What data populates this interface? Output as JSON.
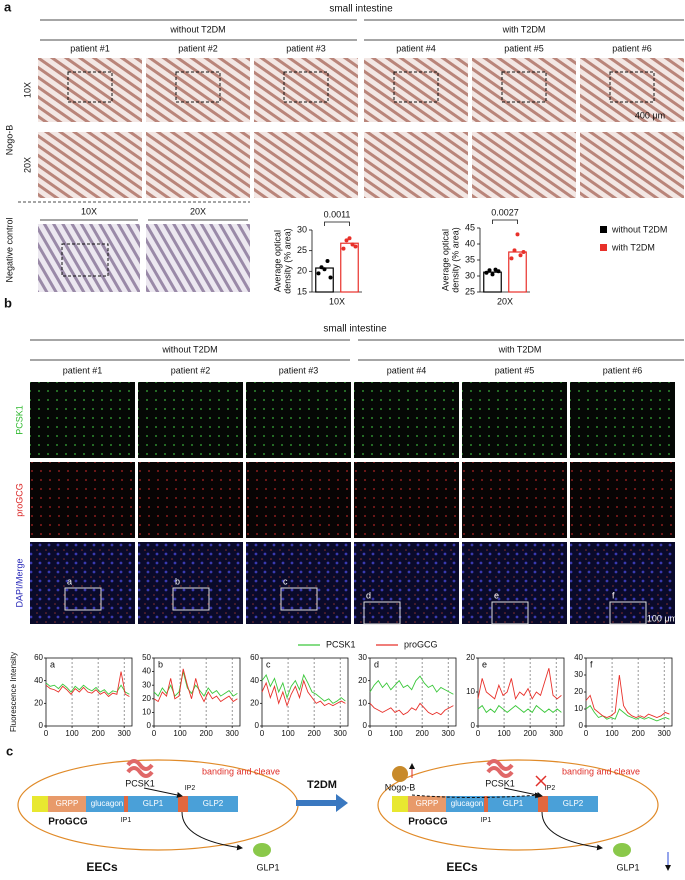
{
  "panel_a": {
    "label": "a",
    "title": "small intestine",
    "groups": [
      "without T2DM",
      "with T2DM"
    ],
    "patients": [
      "patient #1",
      "patient #2",
      "patient #3",
      "patient #4",
      "patient #5",
      "patient #6"
    ],
    "row_labels": [
      "10X",
      "20X"
    ],
    "stain_label": "Nogo-B",
    "negative_control": {
      "label": "Negative control",
      "columns": [
        "10X",
        "20X"
      ]
    },
    "scale_bar": "400 μm"
  },
  "panel_b": {
    "label": "b",
    "title": "small intestine",
    "groups": [
      "without T2DM",
      "with T2DM"
    ],
    "patients": [
      "patient #1",
      "patient #2",
      "patient #3",
      "patient #4",
      "patient #5",
      "patient #6"
    ],
    "rows": [
      "PCSK1",
      "proGCG",
      "DAPI/Merge"
    ],
    "roi_labels": [
      "a",
      "b",
      "c",
      "d",
      "e",
      "f"
    ],
    "scale_bar": "100 μm"
  },
  "chart_data": [
    {
      "type": "bar",
      "ylabel_lines": [
        "Average optical",
        "density (% area)"
      ],
      "xlabel": "10X",
      "ylim": [
        15,
        30
      ],
      "yticks": [
        15,
        20,
        25,
        30
      ],
      "annotation": "0.0011",
      "legend": "right",
      "series": [
        {
          "name": "without T2DM",
          "color": "#000000",
          "values": [
            20.8
          ],
          "points": [
            19.5,
            21,
            20.5,
            22.5,
            18.5
          ]
        },
        {
          "name": "with T2DM",
          "color": "#e8302a",
          "values": [
            26.8
          ],
          "points": [
            25.5,
            27.5,
            28,
            26.5,
            26
          ]
        }
      ]
    },
    {
      "type": "bar",
      "ylabel_lines": [
        "Average optical",
        "density (% area)"
      ],
      "xlabel": "20X",
      "ylim": [
        25,
        45
      ],
      "yticks": [
        25,
        30,
        35,
        40,
        45
      ],
      "annotation": "0.0027",
      "series": [
        {
          "name": "without T2DM",
          "color": "#000000",
          "values": [
            31.2
          ],
          "points": [
            31,
            31.8,
            30.5,
            32,
            31.5
          ]
        },
        {
          "name": "with T2DM",
          "color": "#e8302a",
          "values": [
            37.5
          ],
          "points": [
            35.5,
            38,
            43,
            36.5,
            37.5
          ]
        }
      ]
    },
    {
      "type": "line",
      "label": "a",
      "ylabel": "Fluorescence Intensity",
      "xlim": [
        0,
        330
      ],
      "xticks": [
        0,
        100,
        200,
        300
      ],
      "ylim": [
        0,
        60
      ],
      "yticks": [
        0,
        20,
        40,
        60
      ],
      "grid": "dashed",
      "x": [
        0,
        16,
        32,
        48,
        64,
        80,
        96,
        112,
        128,
        144,
        160,
        176,
        192,
        208,
        224,
        240,
        256,
        272,
        288,
        304,
        320
      ],
      "series": [
        {
          "name": "PCSK1",
          "color": "#3cc83c",
          "values": [
            38,
            35,
            36,
            33,
            37,
            34,
            30,
            35,
            32,
            36,
            33,
            31,
            34,
            30,
            32,
            28,
            31,
            30,
            36,
            30,
            28
          ]
        },
        {
          "name": "proGCG",
          "color": "#e8302a",
          "values": [
            36,
            33,
            32,
            30,
            35,
            32,
            28,
            33,
            30,
            34,
            30,
            29,
            32,
            28,
            30,
            26,
            29,
            28,
            48,
            28,
            26
          ]
        }
      ]
    },
    {
      "type": "line",
      "label": "b",
      "xlim": [
        0,
        330
      ],
      "xticks": [
        0,
        100,
        200,
        300
      ],
      "ylim": [
        0,
        50
      ],
      "yticks": [
        0,
        10,
        20,
        30,
        40,
        50
      ],
      "grid": "dashed",
      "x": [
        0,
        16,
        32,
        48,
        64,
        80,
        96,
        112,
        128,
        144,
        160,
        176,
        192,
        208,
        224,
        240,
        256,
        272,
        288,
        304,
        320
      ],
      "series": [
        {
          "name": "PCSK1",
          "color": "#3cc83c",
          "values": [
            25,
            22,
            28,
            24,
            30,
            22,
            25,
            40,
            28,
            24,
            30,
            26,
            22,
            28,
            24,
            26,
            22,
            24,
            26,
            22,
            24
          ]
        },
        {
          "name": "proGCG",
          "color": "#e8302a",
          "values": [
            20,
            18,
            25,
            22,
            35,
            20,
            22,
            42,
            30,
            20,
            35,
            24,
            18,
            25,
            20,
            22,
            18,
            20,
            22,
            18,
            20
          ]
        }
      ]
    },
    {
      "type": "line",
      "label": "c",
      "xlim": [
        0,
        330
      ],
      "xticks": [
        0,
        100,
        200,
        300
      ],
      "ylim": [
        0,
        60
      ],
      "yticks": [
        0,
        20,
        40,
        60
      ],
      "grid": "dashed",
      "x": [
        0,
        16,
        32,
        48,
        64,
        80,
        96,
        112,
        128,
        144,
        160,
        176,
        192,
        208,
        224,
        240,
        256,
        272,
        288,
        304,
        320
      ],
      "series": [
        {
          "name": "PCSK1",
          "color": "#3cc83c",
          "values": [
            40,
            45,
            35,
            42,
            30,
            38,
            25,
            35,
            40,
            32,
            45,
            38,
            30,
            28,
            25,
            22,
            24,
            20,
            22,
            25,
            22
          ]
        },
        {
          "name": "proGCG",
          "color": "#e8302a",
          "values": [
            30,
            38,
            25,
            35,
            20,
            30,
            18,
            28,
            35,
            25,
            40,
            30,
            25,
            20,
            22,
            18,
            20,
            18,
            20,
            22,
            20
          ]
        }
      ]
    },
    {
      "type": "line",
      "label": "d",
      "xlim": [
        0,
        330
      ],
      "xticks": [
        0,
        100,
        200,
        300
      ],
      "ylim": [
        0,
        30
      ],
      "yticks": [
        0,
        10,
        20,
        30
      ],
      "grid": "dashed",
      "x": [
        0,
        16,
        32,
        48,
        64,
        80,
        96,
        112,
        128,
        144,
        160,
        176,
        192,
        208,
        224,
        240,
        256,
        272,
        288,
        304,
        320
      ],
      "series": [
        {
          "name": "PCSK1",
          "color": "#3cc83c",
          "values": [
            15,
            18,
            20,
            17,
            19,
            16,
            18,
            20,
            17,
            18,
            16,
            20,
            22,
            19,
            17,
            18,
            15,
            17,
            16,
            15,
            14
          ]
        },
        {
          "name": "proGCG",
          "color": "#e8302a",
          "values": [
            10,
            8,
            7,
            6,
            7,
            8,
            6,
            7,
            5,
            6,
            8,
            7,
            10,
            8,
            6,
            5,
            6,
            5,
            7,
            8,
            9
          ]
        }
      ]
    },
    {
      "type": "line",
      "label": "e",
      "xlim": [
        0,
        330
      ],
      "xticks": [
        0,
        100,
        200,
        300
      ],
      "ylim": [
        0,
        20
      ],
      "yticks": [
        0,
        10,
        20
      ],
      "grid": "dashed",
      "x": [
        0,
        16,
        32,
        48,
        64,
        80,
        96,
        112,
        128,
        144,
        160,
        176,
        192,
        208,
        224,
        240,
        256,
        272,
        288,
        304,
        320
      ],
      "series": [
        {
          "name": "PCSK1",
          "color": "#3cc83c",
          "values": [
            5,
            6,
            4,
            5,
            4,
            6,
            5,
            4,
            5,
            6,
            5,
            4,
            5,
            4,
            6,
            5,
            4,
            5,
            4,
            5,
            4
          ]
        },
        {
          "name": "proGCG",
          "color": "#e8302a",
          "values": [
            8,
            14,
            10,
            9,
            8,
            12,
            9,
            10,
            14,
            8,
            10,
            9,
            11,
            8,
            10,
            9,
            13,
            17,
            9,
            8,
            9
          ]
        }
      ]
    },
    {
      "type": "line",
      "label": "f",
      "xlim": [
        0,
        330
      ],
      "xticks": [
        0,
        100,
        200,
        300
      ],
      "ylim": [
        0,
        40
      ],
      "yticks": [
        0,
        10,
        20,
        30,
        40
      ],
      "grid": "dashed",
      "x": [
        0,
        16,
        32,
        48,
        64,
        80,
        96,
        112,
        128,
        144,
        160,
        176,
        192,
        208,
        224,
        240,
        256,
        272,
        288,
        304,
        320
      ],
      "series": [
        {
          "name": "PCSK1",
          "color": "#3cc83c",
          "values": [
            10,
            12,
            8,
            5,
            6,
            4,
            5,
            4,
            10,
            8,
            6,
            5,
            4,
            5,
            4,
            5,
            4,
            3,
            4,
            5,
            4
          ]
        },
        {
          "name": "proGCG",
          "color": "#e8302a",
          "values": [
            15,
            18,
            10,
            8,
            6,
            5,
            6,
            8,
            30,
            12,
            8,
            6,
            5,
            6,
            5,
            7,
            6,
            5,
            6,
            8,
            7
          ]
        }
      ]
    }
  ],
  "panel_c": {
    "label": "c",
    "arrow": "T2DM",
    "left": {
      "enzyme": "PCSK1",
      "action": "banding and cleave",
      "segments": [
        "GRPP",
        "glucagon",
        "GLP1",
        "GLP2"
      ],
      "sites": [
        "IP1",
        "IP2"
      ],
      "precursor": "ProGCG",
      "cell": "EECs",
      "product": "GLP1"
    },
    "right": {
      "inhibitor": "Nogo-B",
      "enzyme": "PCSK1",
      "action": "banding and cleave",
      "segments": [
        "GRPP",
        "glucagon",
        "GLP1",
        "GLP2"
      ],
      "sites": [
        "IP1",
        "IP2"
      ],
      "precursor": "ProGCG",
      "cell": "EECs",
      "product": "GLP1"
    }
  }
}
